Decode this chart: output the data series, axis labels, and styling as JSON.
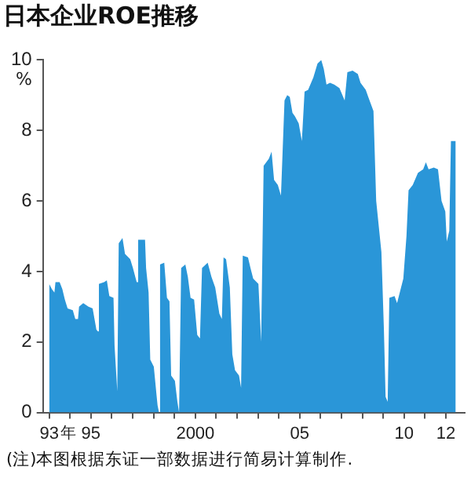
{
  "chart_data": {
    "type": "area",
    "title": "日本企业ROE推移",
    "ylabel": "%",
    "xlabel": "年",
    "annotations": [
      "(注)本图根据东证一部数据进行简易计算制作."
    ],
    "x": [
      1993.0,
      1993.0,
      1993.13,
      1993.25,
      1993.3,
      1993.5,
      1993.63,
      1993.75,
      1993.88,
      1994.13,
      1994.25,
      1994.38,
      1994.43,
      1994.63,
      1994.88,
      1995.08,
      1995.26,
      1995.33,
      1995.38,
      1995.63,
      1995.76,
      1995.88,
      1996.08,
      1996.13,
      1996.26,
      1996.33,
      1996.51,
      1996.63,
      1996.88,
      1997.01,
      1997.19,
      1997.26,
      1997.59,
      1997.64,
      1997.76,
      1997.84,
      1998.01,
      1998.14,
      1998.19,
      1998.26,
      1998.31,
      1998.51,
      1998.64,
      1998.76,
      1998.84,
      1999.02,
      1999.14,
      1999.22,
      1999.32,
      1999.52,
      1999.64,
      1999.77,
      1999.94,
      2000.09,
      2000.22,
      2000.32,
      2000.59,
      2000.77,
      2000.95,
      2001.15,
      2001.27,
      2001.35,
      2001.47,
      2001.65,
      2001.77,
      2001.9,
      2002.09,
      2002.19,
      2002.27,
      2002.52,
      2002.64,
      2002.77,
      2003.02,
      2003.15,
      2003.27,
      2003.52,
      2003.65,
      2003.77,
      2003.95,
      2004.1,
      2004.27,
      2004.4,
      2004.52,
      2004.65,
      2004.77,
      2004.95,
      2005.1,
      2005.23,
      2005.4,
      2005.65,
      2005.85,
      2006.03,
      2006.15,
      2006.28,
      2006.45,
      2006.65,
      2006.9,
      2007.15,
      2007.28,
      2007.53,
      2007.78,
      2007.91,
      2008.16,
      2008.28,
      2008.53,
      2008.66,
      2008.91,
      2009.03,
      2009.11,
      2009.21,
      2009.29,
      2009.54,
      2009.66,
      2009.79,
      2009.96,
      2010.11,
      2010.21,
      2010.41,
      2010.66,
      2010.91,
      2011.04,
      2011.17,
      2011.42,
      2011.62,
      2011.79,
      2011.97,
      2012.04,
      2012.16,
      2012.24,
      2012.47,
      2012.47
    ],
    "series": [
      {
        "color": "#2a96d8",
        "values": [
          0,
          3.65,
          3.5,
          3.4,
          3.7,
          3.7,
          3.5,
          3.2,
          2.95,
          2.9,
          2.65,
          2.65,
          3.0,
          3.1,
          3.0,
          2.95,
          2.35,
          2.3,
          3.65,
          3.7,
          3.75,
          3.3,
          3.25,
          1.9,
          0.6,
          4.8,
          4.95,
          4.5,
          4.35,
          4.1,
          3.7,
          4.9,
          4.9,
          4.1,
          3.4,
          1.5,
          1.3,
          0.5,
          0.2,
          0,
          4.2,
          4.25,
          3.25,
          3.15,
          1.05,
          0.9,
          0.3,
          0,
          4.1,
          4.2,
          3.85,
          3.25,
          3.2,
          2.2,
          2.1,
          4.1,
          4.25,
          3.85,
          3.55,
          2.8,
          2.65,
          4.4,
          4.35,
          3.55,
          1.65,
          1.2,
          1.05,
          0.7,
          4.45,
          4.4,
          4.1,
          3.8,
          3.65,
          2.0,
          7.0,
          7.2,
          7.4,
          6.6,
          6.45,
          6.15,
          8.85,
          9.0,
          8.95,
          8.5,
          8.4,
          8.2,
          7.7,
          9.1,
          9.15,
          9.5,
          9.9,
          10.0,
          9.75,
          9.3,
          9.35,
          9.3,
          9.2,
          8.85,
          9.65,
          9.7,
          9.6,
          9.35,
          9.15,
          8.95,
          8.55,
          6.0,
          4.55,
          2.35,
          0.45,
          0.3,
          3.25,
          3.3,
          3.1,
          3.4,
          3.8,
          5.0,
          6.3,
          6.45,
          6.8,
          6.9,
          7.1,
          6.9,
          6.95,
          6.9,
          6.0,
          5.7,
          4.85,
          5.15,
          7.7,
          7.7,
          0
        ]
      }
    ],
    "xlim": [
      1992.7,
      2012.9
    ],
    "ylim": [
      0,
      10
    ],
    "xticks": [
      {
        "value": 1993,
        "label": "93"
      },
      {
        "value": 1994,
        "label": null
      },
      {
        "value": 1995,
        "label": "95"
      },
      {
        "value": 1996,
        "label": null
      },
      {
        "value": 1997,
        "label": null
      },
      {
        "value": 1998,
        "label": null
      },
      {
        "value": 1999,
        "label": null
      },
      {
        "value": 2000,
        "label": "2000"
      },
      {
        "value": 2001,
        "label": null
      },
      {
        "value": 2002,
        "label": null
      },
      {
        "value": 2003,
        "label": null
      },
      {
        "value": 2004,
        "label": null
      },
      {
        "value": 2005,
        "label": "05"
      },
      {
        "value": 2006,
        "label": null
      },
      {
        "value": 2007,
        "label": null
      },
      {
        "value": 2008,
        "label": null
      },
      {
        "value": 2009,
        "label": null
      },
      {
        "value": 2010,
        "label": "10"
      },
      {
        "value": 2011,
        "label": null
      },
      {
        "value": 2012,
        "label": "12"
      }
    ],
    "yticks": [
      0,
      2,
      4,
      6,
      8,
      10
    ],
    "grid": false,
    "legend": false
  }
}
